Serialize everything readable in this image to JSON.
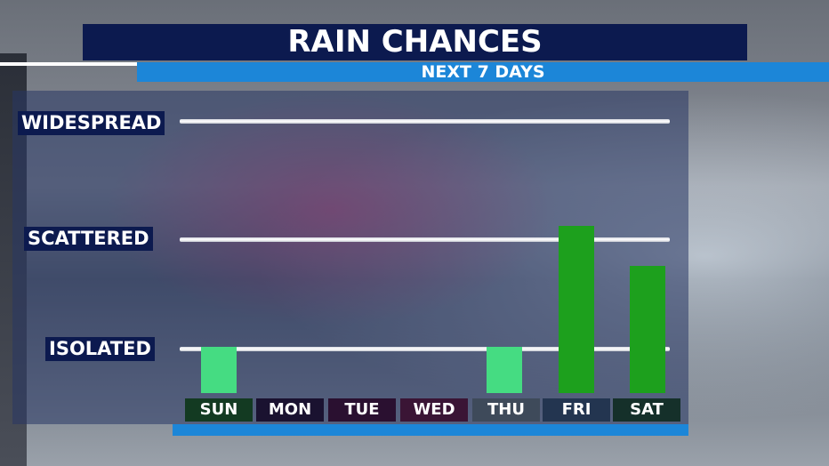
{
  "header": {
    "title": "RAIN CHANCES",
    "subtitle": "NEXT 7 DAYS"
  },
  "colors": {
    "title_bg": "#0c1a4f",
    "subtitle_bg": "#1c86d8",
    "bar_light_green": "#45dc82",
    "bar_dark_green": "#1da01d"
  },
  "chart_data": {
    "type": "bar",
    "title": "RAIN CHANCES",
    "subtitle": "NEXT 7 DAYS",
    "categories": [
      "SUN",
      "MON",
      "TUE",
      "WED",
      "THU",
      "FRI",
      "SAT"
    ],
    "values": [
      0.4,
      0,
      0,
      0,
      0.4,
      1.45,
      1.1
    ],
    "bar_colors": [
      "#45dc82",
      null,
      null,
      null,
      "#45dc82",
      "#1da01d",
      "#1da01d"
    ],
    "label_colors": [
      "#133a22",
      "#1a1230",
      "#2a1030",
      "#3a1535",
      "#3e4a5a",
      "#233550",
      "#15302a"
    ],
    "y_levels": [
      {
        "label": "ISOLATED",
        "value": 0.4
      },
      {
        "label": "SCATTERED",
        "value": 1.0
      },
      {
        "label": "WIDESPREAD",
        "value": 1.6
      }
    ],
    "ylim": [
      0,
      1.6
    ],
    "grid": true
  }
}
